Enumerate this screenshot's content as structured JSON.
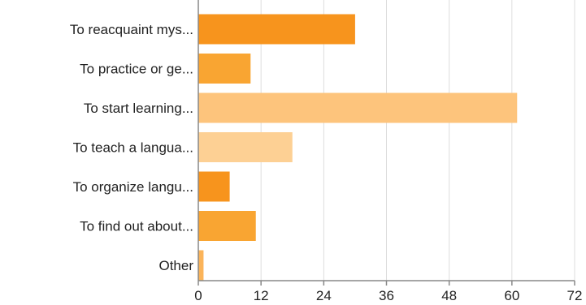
{
  "chart_data": {
    "type": "bar",
    "orientation": "horizontal",
    "categories": [
      "To reacquaint mys...",
      "To practice or ge...",
      "To start learning...",
      "To teach a langua...",
      "To organize langu...",
      "To find out about...",
      "Other"
    ],
    "values": [
      30,
      10,
      61,
      18,
      6,
      11,
      1
    ],
    "colors": [
      "#f7941d",
      "#f9a532",
      "#fdc47c",
      "#fdd094",
      "#f7941d",
      "#f9a532",
      "#fbb45a"
    ],
    "xlim": [
      0,
      72
    ],
    "xticks": [
      "0",
      "12",
      "24",
      "36",
      "48",
      "60",
      "72"
    ],
    "title": "",
    "xlabel": "",
    "ylabel": "",
    "grid": true,
    "legend": "none"
  }
}
